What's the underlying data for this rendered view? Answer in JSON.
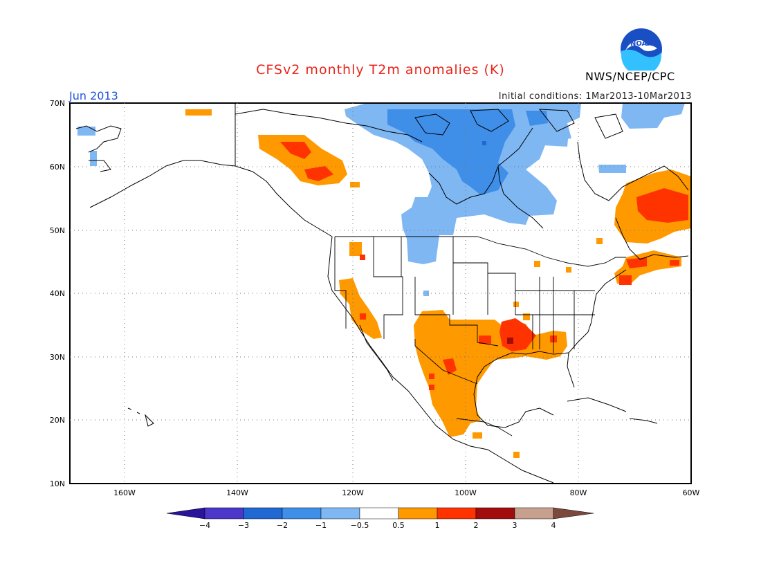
{
  "title": "CFSv2 monthly T2m anomalies (K)",
  "org": "NWS/NCEP/CPC",
  "logo_text": "NOAA",
  "period": "Jun 2013",
  "initial_conditions": "Initial conditions: 1Mar2013-10Mar2013",
  "lat_labels": [
    "70N",
    "60N",
    "50N",
    "40N",
    "30N",
    "20N",
    "10N"
  ],
  "lon_labels": [
    "160W",
    "140W",
    "120W",
    "100W",
    "80W",
    "60W"
  ],
  "colorbar": {
    "labels": [
      "−4",
      "−3",
      "−2",
      "−1",
      "−0.5",
      "0.5",
      "1",
      "2",
      "3",
      "4"
    ],
    "colors": [
      "#2a1499",
      "#4b37c9",
      "#2068d2",
      "#3f8ee8",
      "#7fb7f2",
      "#ffffff",
      "#ff9900",
      "#ff3300",
      "#a10d0d",
      "#c8a08e",
      "#7b4a3c"
    ]
  },
  "anomaly_regions": {
    "negative": "Canada north of the Great Lakes, Hudson Bay, northern Quebec, northern Plains",
    "positive": "Southern Great Plains, Texas, Mexico, Lower Mississippi Valley, Northeast US, Labrador, Yukon/northern British Columbia, Southwest US"
  }
}
